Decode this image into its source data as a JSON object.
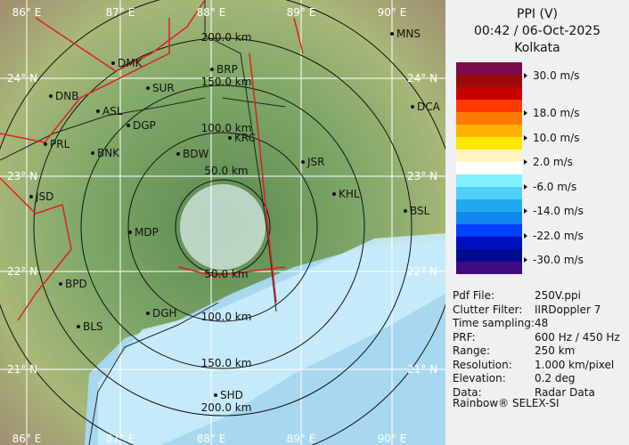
{
  "header": {
    "product": "PPI (V)",
    "datetime": "00:42 / 06-Oct-2025",
    "site": "Kolkata"
  },
  "legend": {
    "colors": [
      "#7a0a4a",
      "#9a0a0a",
      "#c80000",
      "#ff3a00",
      "#ff7a00",
      "#ffb000",
      "#ffe800",
      "#fff4c0",
      "#ffffff",
      "#80f0ff",
      "#50d0f8",
      "#20a8f0",
      "#1088f0",
      "#0040ff",
      "#0010c0",
      "#000c90",
      "#400a80"
    ],
    "labels": [
      "30.0 m/s",
      "18.0 m/s",
      "10.0 m/s",
      "2.0 m/s",
      "-6.0 m/s",
      "-14.0 m/s",
      "-22.0 m/s",
      "-30.0 m/s"
    ]
  },
  "info": [
    {
      "key": "Pdf File:",
      "value": "250V.ppi"
    },
    {
      "key": "Clutter Filter:",
      "value": "IIRDoppler 7"
    },
    {
      "key": "Time sampling:",
      "value": "48"
    },
    {
      "key": "PRF:",
      "value": "600 Hz / 450 Hz"
    },
    {
      "key": "Range:",
      "value": "250 km"
    },
    {
      "key": "Resolution:",
      "value": "1.000 km/pixel"
    },
    {
      "key": "Elevation:",
      "value": "0.2 deg"
    },
    {
      "key": "Data:",
      "value": "Radar Data"
    }
  ],
  "footer": "Rainbow® SELEX-SI",
  "map": {
    "lon_labels": [
      "86° E",
      "87° E",
      "88° E",
      "89° E",
      "90° E"
    ],
    "lat_labels": [
      "24° N",
      "23° N",
      "22° N",
      "21° N"
    ],
    "range_labels": [
      "50.0 km",
      "100.0 km",
      "150.0 km",
      "200.0 km"
    ],
    "cities": [
      "MNS",
      "DMK",
      "BRP",
      "DNB",
      "SUR",
      "ASL",
      "DGP",
      "DCA",
      "KRC",
      "PRL",
      "BNK",
      "BDW",
      "JSR",
      "JSD",
      "KHL",
      "BSL",
      "MDP",
      "BPD",
      "DGH",
      "BLS",
      "SHD"
    ]
  }
}
